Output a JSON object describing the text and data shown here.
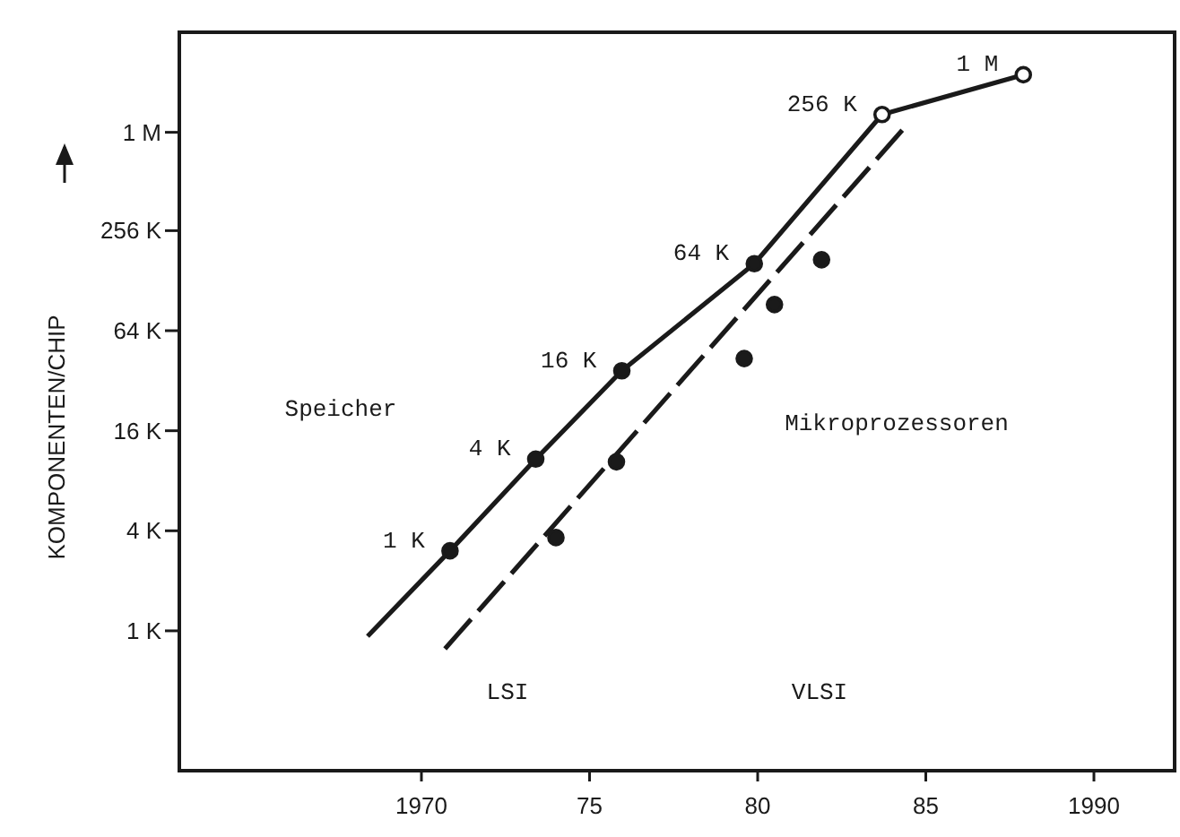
{
  "chart_data": {
    "type": "line",
    "ylabel": "KOMPONENTEN/CHIP",
    "log": "y",
    "grid": false,
    "xlim": [
      1962.8,
      1992.4
    ],
    "xticks": [
      1970,
      {
        "value": 1975,
        "label": "75"
      },
      {
        "value": 1980,
        "label": "80"
      },
      {
        "value": 1985,
        "label": "85"
      },
      1990
    ],
    "ylim": [
      144,
      4000000
    ],
    "yticks": [
      {
        "value": 1000,
        "label": "1 K"
      },
      {
        "value": 4000,
        "label": "4 K"
      },
      {
        "value": 16000,
        "label": "16 K"
      },
      {
        "value": 64000,
        "label": "64 K"
      },
      {
        "value": 256000,
        "label": "256 K"
      },
      {
        "value": 1000000,
        "label": "1 M"
      }
    ],
    "series": [
      {
        "type": "line",
        "color": "#1a1a1a",
        "marker": "none",
        "line_style": "solid",
        "x": [
          1968.4,
          1970.85,
          1973.4,
          1975.96,
          1979.9,
          1983.7,
          1987.9
        ],
        "values": [
          928,
          3030,
          10800,
          36700,
          162000,
          1280000,
          2220000
        ]
      },
      {
        "type": "scatter",
        "color": "#1a1a1a",
        "marker": "circle",
        "colors": [
          "#1a1a1a",
          "#1a1a1a",
          "#1a1a1a",
          "#1a1a1a",
          "#ffffff",
          "#ffffff"
        ],
        "x": [
          1970.85,
          1973.4,
          1975.96,
          1979.9,
          1983.7,
          1987.9
        ],
        "values": [
          3030,
          10800,
          36700,
          162000,
          1280000,
          2220000
        ]
      },
      {
        "type": "line",
        "color": "#1a1a1a",
        "marker": "none",
        "line_style": "dashed",
        "x": [
          1970.7,
          1984.3
        ],
        "values": [
          780,
          1030000
        ]
      },
      {
        "type": "scatter",
        "color": "#1a1a1a",
        "marker": "circle",
        "x": [
          1974.0,
          1975.8,
          1979.6,
          1980.5,
          1981.9
        ],
        "values": [
          3640,
          10400,
          43500,
          91900,
          171000
        ]
      }
    ],
    "annotations": [
      {
        "text": "1 K",
        "x": 1970.85,
        "y": 3030
      },
      {
        "text": "4 K",
        "x": 1973.4,
        "y": 10800
      },
      {
        "text": "16 K",
        "x": 1975.96,
        "y": 36700
      },
      {
        "text": "64 K",
        "x": 1979.9,
        "y": 162000
      },
      {
        "text": "256 K",
        "x": 1983.7,
        "y": 1280000
      },
      {
        "text": "1 M",
        "x": 1987.9,
        "y": 2220000
      },
      "Speicher",
      "Mikroprozessoren",
      "LSI",
      "VLSI"
    ]
  }
}
